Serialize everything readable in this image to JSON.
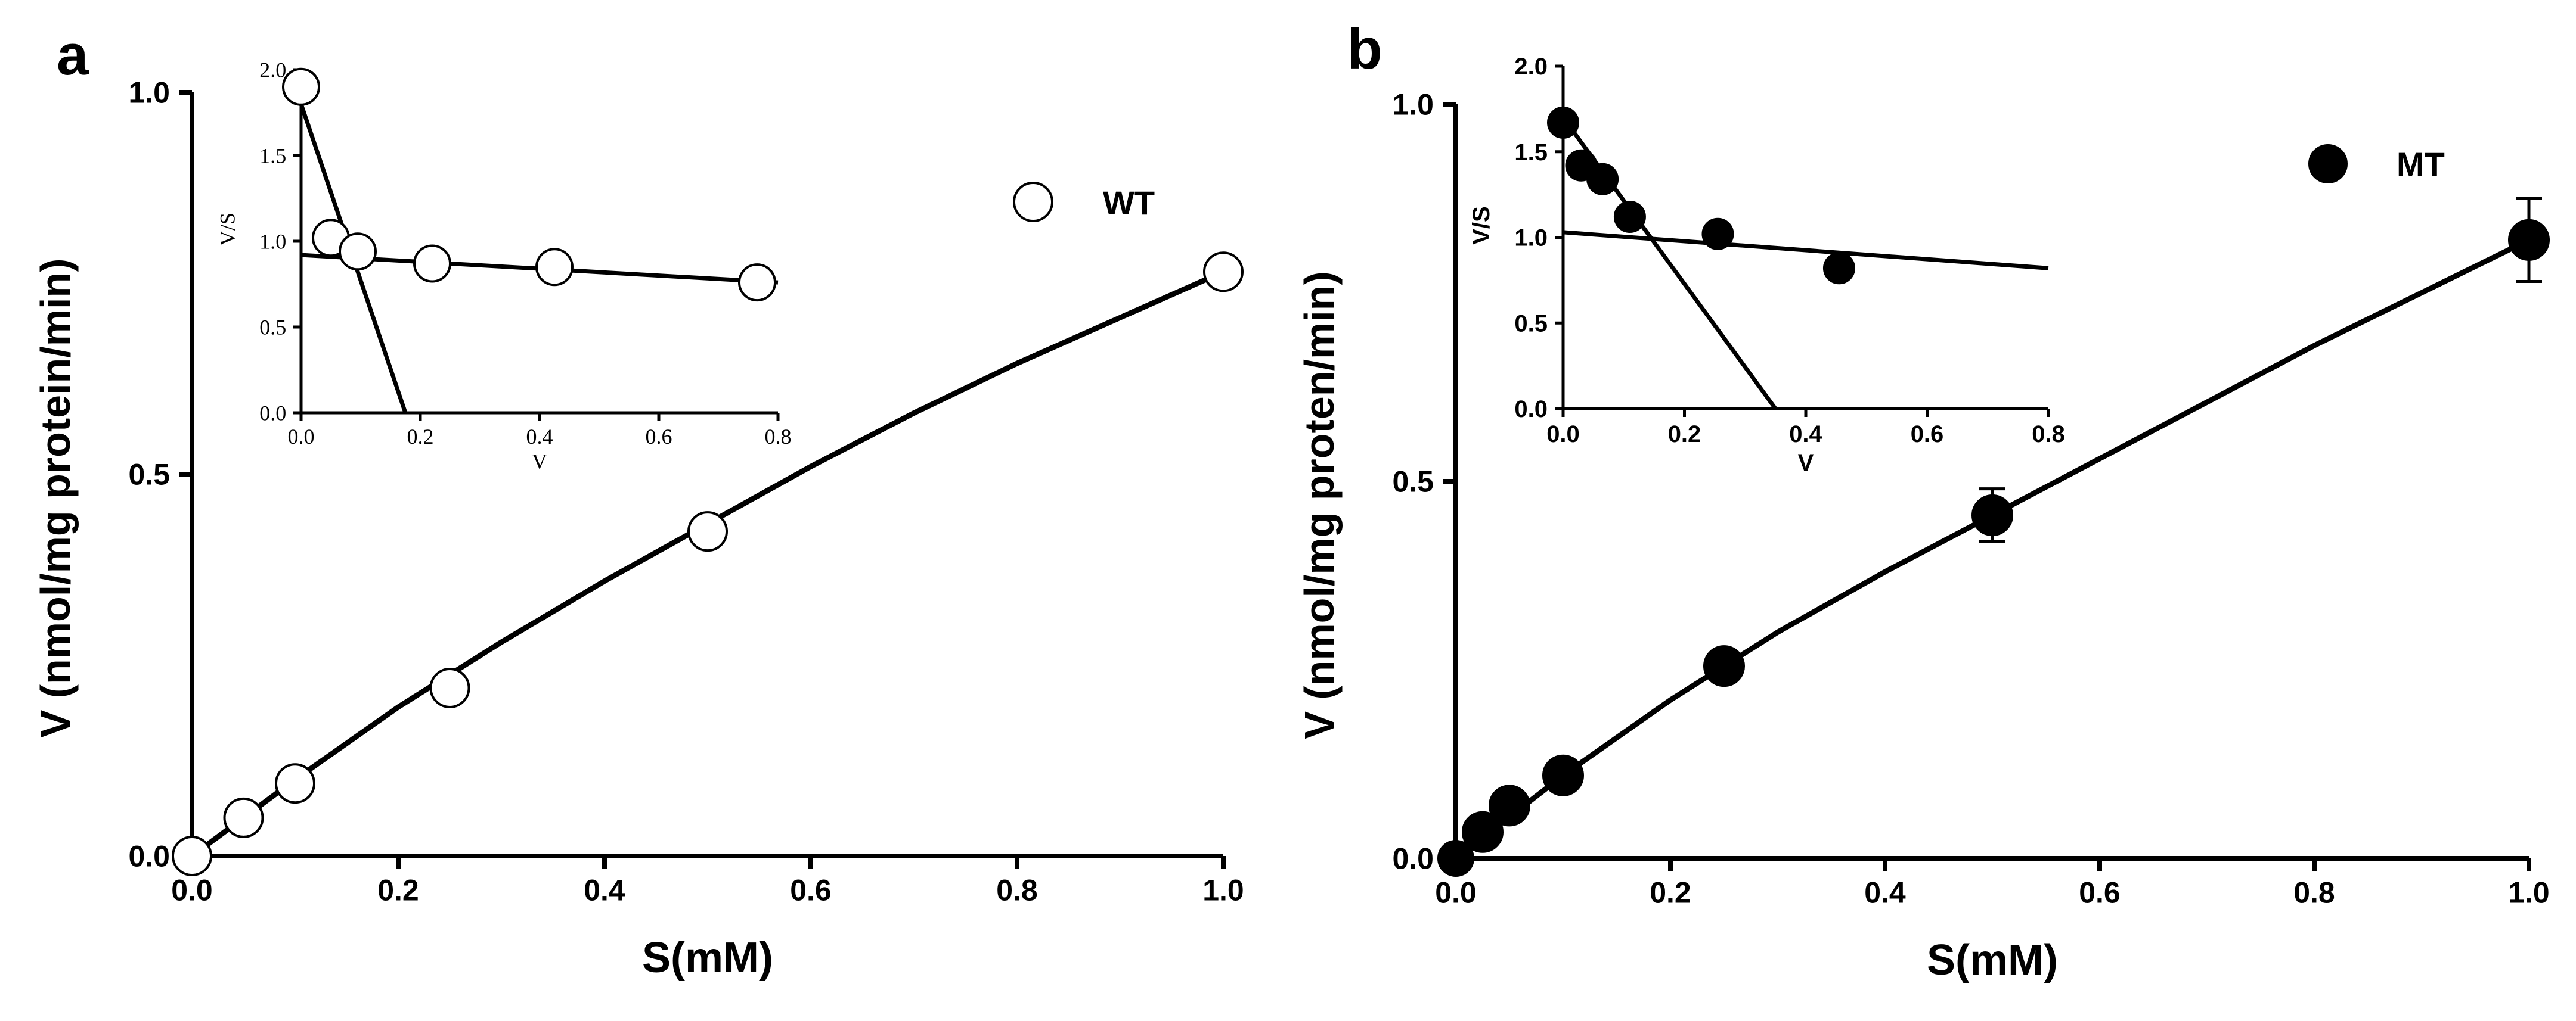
{
  "chart_data": [
    {
      "panel_label": "a",
      "type": "scatter",
      "xlabel": "S(mM)",
      "ylabel": "V (nmol/mg protein/min)",
      "xlim": [
        0,
        1.0
      ],
      "ylim": [
        0,
        1.0
      ],
      "x_ticks": [
        "0.0",
        "0.2",
        "0.4",
        "0.6",
        "0.8",
        "1.0"
      ],
      "y_ticks": [
        "0.0",
        "0.5",
        "1.0"
      ],
      "marker": "open-circle",
      "legend": {
        "label": "WT",
        "position": "top-right"
      },
      "series": [
        {
          "name": "WT",
          "x": [
            0,
            0.05,
            0.1,
            0.25,
            0.5,
            1.0
          ],
          "y": [
            0,
            0.05,
            0.095,
            0.22,
            0.425,
            0.765
          ]
        }
      ],
      "fit_curve": {
        "x": [
          0,
          0.1,
          0.2,
          0.3,
          0.4,
          0.5,
          0.6,
          0.7,
          0.8,
          0.9,
          1.0
        ],
        "y": [
          0,
          0.1,
          0.195,
          0.28,
          0.36,
          0.435,
          0.51,
          0.58,
          0.645,
          0.705,
          0.765
        ]
      },
      "inset": {
        "type": "scatter",
        "xlabel": "V",
        "ylabel": "V/S",
        "xlim": [
          0,
          0.8
        ],
        "ylim": [
          0,
          2.0
        ],
        "x_ticks": [
          "0.0",
          "0.2",
          "0.4",
          "0.6",
          "0.8"
        ],
        "y_ticks": [
          "0.0",
          "0.5",
          "1.0",
          "1.5",
          "2.0"
        ],
        "marker": "open-circle",
        "points": {
          "x": [
            0,
            0.05,
            0.095,
            0.22,
            0.425,
            0.765
          ],
          "y": [
            1.9,
            1.02,
            0.94,
            0.87,
            0.85,
            0.76
          ]
        },
        "lines": [
          {
            "x": [
              0,
              0.8
            ],
            "y": [
              0.92,
              0.76
            ]
          },
          {
            "x": [
              0,
              0.175
            ],
            "y": [
              1.8,
              0
            ]
          }
        ]
      }
    },
    {
      "panel_label": "b",
      "type": "scatter",
      "xlabel": "S(mM)",
      "ylabel": "V (nmol/mg proten/min)",
      "xlim": [
        0,
        1.0
      ],
      "ylim": [
        0,
        1.0
      ],
      "x_ticks": [
        "0.0",
        "0.2",
        "0.4",
        "0.6",
        "0.8",
        "1.0"
      ],
      "y_ticks": [
        "0.0",
        "0.5",
        "1.0"
      ],
      "marker": "filled-circle",
      "legend": {
        "label": "MT",
        "position": "top-right"
      },
      "series": [
        {
          "name": "MT",
          "x": [
            0,
            0.025,
            0.05,
            0.1,
            0.25,
            0.5,
            1.0
          ],
          "y": [
            0,
            0.035,
            0.07,
            0.11,
            0.255,
            0.455,
            0.82
          ],
          "error": [
            0,
            0,
            0,
            0,
            0,
            0.035,
            0.055
          ]
        }
      ],
      "fit_curve": {
        "x": [
          0,
          0.1,
          0.2,
          0.3,
          0.4,
          0.5,
          0.6,
          0.7,
          0.8,
          0.9,
          1.0
        ],
        "y": [
          0,
          0.11,
          0.21,
          0.3,
          0.38,
          0.455,
          0.53,
          0.605,
          0.68,
          0.75,
          0.82
        ]
      },
      "inset": {
        "type": "scatter",
        "xlabel": "V",
        "ylabel": "V/S",
        "xlim": [
          0,
          0.8
        ],
        "ylim": [
          0,
          2.0
        ],
        "x_ticks": [
          "0.0",
          "0.2",
          "0.4",
          "0.6",
          "0.8"
        ],
        "y_ticks": [
          "0.0",
          "0.5",
          "1.0",
          "1.5",
          "2.0"
        ],
        "marker": "filled-circle",
        "points": {
          "x": [
            0,
            0.03,
            0.065,
            0.11,
            0.255,
            0.455
          ],
          "y": [
            1.67,
            1.42,
            1.34,
            1.12,
            1.02,
            0.82
          ]
        },
        "lines": [
          {
            "x": [
              0,
              0.8
            ],
            "y": [
              1.03,
              0.82
            ]
          },
          {
            "x": [
              0,
              0.35
            ],
            "y": [
              1.7,
              0
            ]
          }
        ]
      }
    }
  ]
}
